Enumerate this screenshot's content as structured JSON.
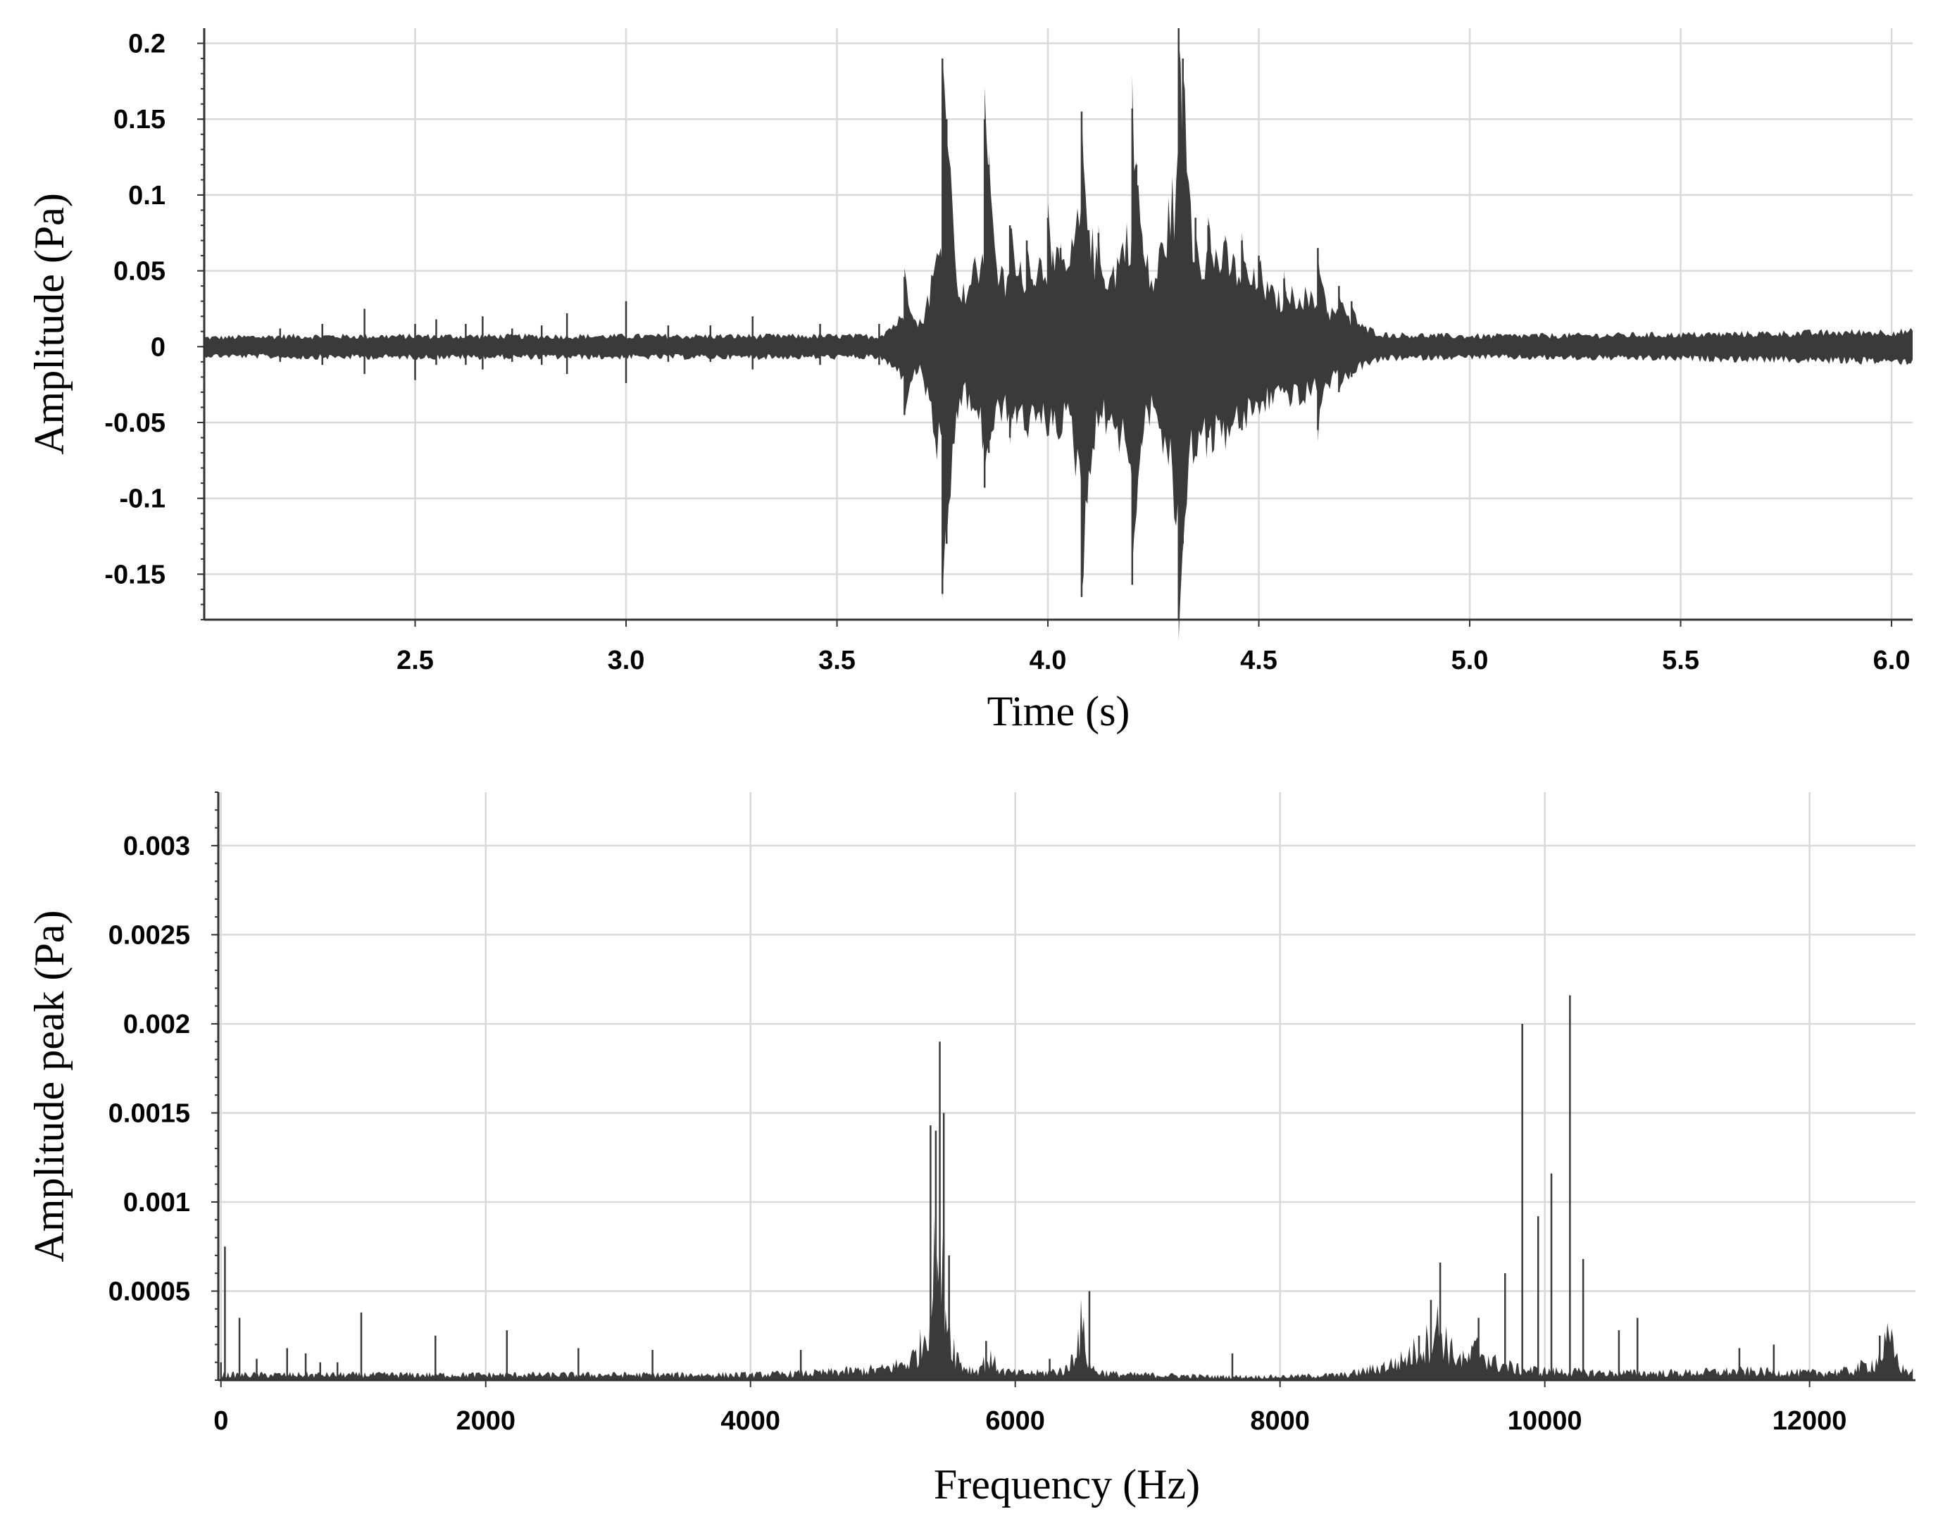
{
  "chart_data": [
    {
      "type": "line",
      "xlabel": "Time (s)",
      "ylabel": "Amplitude (Pa)",
      "xlim": [
        2.0,
        6.05
      ],
      "ylim": [
        -0.18,
        0.21
      ],
      "x_ticks": [
        2.5,
        3.0,
        3.5,
        4.0,
        4.5,
        5.0,
        5.5,
        6.0
      ],
      "x_tick_labels": [
        "2.5",
        "3.0",
        "3.5",
        "4.0",
        "4.5",
        "5.0",
        "5.5",
        "6.0"
      ],
      "y_ticks": [
        0.2,
        0.15,
        0.1,
        0.05,
        0,
        -0.05,
        -0.1,
        -0.15
      ],
      "y_tick_labels": [
        "0.2",
        "0.15",
        "0.1",
        "0.05",
        "0",
        "-0.05",
        "-0.1",
        "-0.15"
      ],
      "grid": true,
      "legend": "none",
      "series": [
        {
          "envelope_x": [
            2.0,
            2.2,
            2.4,
            2.6,
            2.8,
            3.0,
            3.2,
            3.4,
            3.6,
            3.66,
            3.7,
            3.75,
            3.8,
            3.85,
            3.9,
            3.95,
            4.0,
            4.05,
            4.08,
            4.12,
            4.15,
            4.2,
            4.25,
            4.31,
            4.35,
            4.4,
            4.45,
            4.5,
            4.55,
            4.6,
            4.65,
            4.7,
            4.75,
            4.8,
            5.0,
            5.5,
            6.05
          ],
          "envelope_upper": [
            0.006,
            0.007,
            0.007,
            0.007,
            0.007,
            0.007,
            0.007,
            0.007,
            0.007,
            0.02,
            0.015,
            0.07,
            0.035,
            0.06,
            0.04,
            0.05,
            0.055,
            0.05,
            0.09,
            0.05,
            0.045,
            0.08,
            0.04,
            0.11,
            0.06,
            0.06,
            0.05,
            0.04,
            0.03,
            0.035,
            0.025,
            0.02,
            0.012,
            0.008,
            0.007,
            0.008,
            0.01
          ],
          "envelope_lower": [
            -0.006,
            -0.007,
            -0.007,
            -0.007,
            -0.007,
            -0.007,
            -0.007,
            -0.007,
            -0.007,
            -0.02,
            -0.015,
            -0.08,
            -0.03,
            -0.06,
            -0.04,
            -0.05,
            -0.05,
            -0.05,
            -0.09,
            -0.05,
            -0.045,
            -0.08,
            -0.035,
            -0.11,
            -0.06,
            -0.06,
            -0.05,
            -0.04,
            -0.03,
            -0.035,
            -0.025,
            -0.02,
            -0.012,
            -0.008,
            -0.007,
            -0.008,
            -0.01
          ],
          "minor_peaks_x": [
            2.18,
            2.28,
            2.38,
            2.5,
            2.55,
            2.62,
            2.66,
            2.73,
            2.8,
            2.86,
            3.0,
            3.1,
            3.2,
            3.3,
            3.46,
            3.6
          ],
          "minor_peaks_upper": [
            0.012,
            0.015,
            0.025,
            0.015,
            0.018,
            0.015,
            0.02,
            0.012,
            0.014,
            0.022,
            0.03,
            0.014,
            0.014,
            0.02,
            0.015,
            0.015
          ],
          "minor_peaks_lower": [
            -0.01,
            -0.012,
            -0.018,
            -0.022,
            -0.012,
            -0.012,
            -0.015,
            -0.01,
            -0.012,
            -0.018,
            -0.024,
            -0.01,
            -0.01,
            -0.015,
            -0.012,
            -0.012
          ],
          "peaks_x": [
            3.66,
            3.75,
            3.76,
            3.85,
            3.86,
            3.91,
            3.95,
            4.0,
            4.03,
            4.08,
            4.12,
            4.2,
            4.21,
            4.31,
            4.32,
            4.35,
            4.38,
            4.42,
            4.46,
            4.5,
            4.56,
            4.64,
            4.69,
            4.72
          ],
          "peaks_upper": [
            0.046,
            0.19,
            0.15,
            0.15,
            0.12,
            0.08,
            0.07,
            0.085,
            0.065,
            0.155,
            0.075,
            0.157,
            0.12,
            0.21,
            0.19,
            0.085,
            0.08,
            0.07,
            0.07,
            0.06,
            0.045,
            0.065,
            0.04,
            0.03
          ],
          "peaks_lower": [
            -0.045,
            -0.163,
            -0.13,
            -0.093,
            -0.07,
            -0.06,
            -0.05,
            -0.055,
            -0.05,
            -0.165,
            -0.05,
            -0.157,
            -0.1,
            -0.18,
            -0.13,
            -0.07,
            -0.06,
            -0.055,
            -0.055,
            -0.04,
            -0.03,
            -0.055,
            -0.03,
            -0.02
          ]
        }
      ]
    },
    {
      "type": "bar",
      "xlabel": "Frequency (Hz)",
      "ylabel": "Amplitude peak (Pa)",
      "xlim": [
        -20,
        12800
      ],
      "ylim": [
        0,
        0.0033
      ],
      "x_ticks": [
        0,
        2000,
        4000,
        6000,
        8000,
        10000,
        12000
      ],
      "x_tick_labels": [
        "0",
        "2000",
        "4000",
        "6000",
        "8000",
        "10000",
        "12000"
      ],
      "y_ticks": [
        0.003,
        0.0025,
        0.002,
        0.0015,
        0.001,
        0.0005
      ],
      "y_tick_labels": [
        "0.003",
        "0.0025",
        "0.002",
        "0.0015",
        "0.001",
        "0.0005"
      ],
      "grid": true,
      "legend": "none",
      "series": [
        {
          "spectrum_x": [
            0,
            500,
            1000,
            1500,
            2000,
            2500,
            3000,
            3500,
            4000,
            4500,
            5000,
            5200,
            5300,
            5350,
            5400,
            5450,
            5500,
            5550,
            5600,
            5700,
            5800,
            5900,
            6000,
            6200,
            6400,
            6500,
            6550,
            6600,
            6700,
            6800,
            7000,
            7500,
            8000,
            8500,
            8700,
            8900,
            9000,
            9100,
            9200,
            9300,
            9400,
            9500,
            9600,
            9800,
            10000,
            10500,
            11000,
            11500,
            12000,
            12300,
            12500,
            12600,
            12700,
            12800
          ],
          "spectrum_values": [
            3e-05,
            3e-05,
            3e-05,
            3e-05,
            3e-05,
            3e-05,
            3e-05,
            3e-05,
            3e-05,
            4e-05,
            6e-05,
            0.0001,
            0.0002,
            0.0004,
            0.00065,
            0.00055,
            0.0003,
            0.00015,
            8e-05,
            5e-05,
            0.00012,
            5e-05,
            4e-05,
            4e-05,
            6e-05,
            0.0003,
            0.00012,
            5e-05,
            4e-05,
            3e-05,
            3e-05,
            2e-05,
            2e-05,
            3e-05,
            6e-05,
            0.0001,
            0.00015,
            0.0002,
            0.0003,
            0.00015,
            0.0001,
            0.00018,
            0.0001,
            6e-05,
            5e-05,
            4e-05,
            4e-05,
            5e-05,
            4e-05,
            5e-05,
            0.0001,
            0.00022,
            6e-05,
            4e-05
          ],
          "peaks_x": [
            0,
            30,
            140,
            270,
            500,
            640,
            750,
            880,
            1060,
            1620,
            2160,
            2700,
            3260,
            4380,
            5360,
            5400,
            5430,
            5460,
            5500,
            5780,
            6260,
            6560,
            7640,
            9050,
            9140,
            9210,
            9500,
            9700,
            9830,
            9950,
            10050,
            10190,
            10290,
            10560,
            10700,
            11470,
            11730,
            12530
          ],
          "peaks_values": [
            0.0001,
            0.00075,
            0.00035,
            0.00012,
            0.00018,
            0.00015,
            0.0001,
            0.0001,
            0.00038,
            0.00025,
            0.00028,
            0.00018,
            0.00017,
            0.00017,
            0.00143,
            0.0014,
            0.0019,
            0.0015,
            0.0007,
            0.00022,
            0.00012,
            0.0005,
            0.00015,
            0.00025,
            0.00045,
            0.00066,
            0.00035,
            0.0006,
            0.002,
            0.00092,
            0.00116,
            0.00216,
            0.00068,
            0.00028,
            0.00035,
            0.00018,
            0.0002,
            0.00025
          ]
        }
      ]
    }
  ]
}
